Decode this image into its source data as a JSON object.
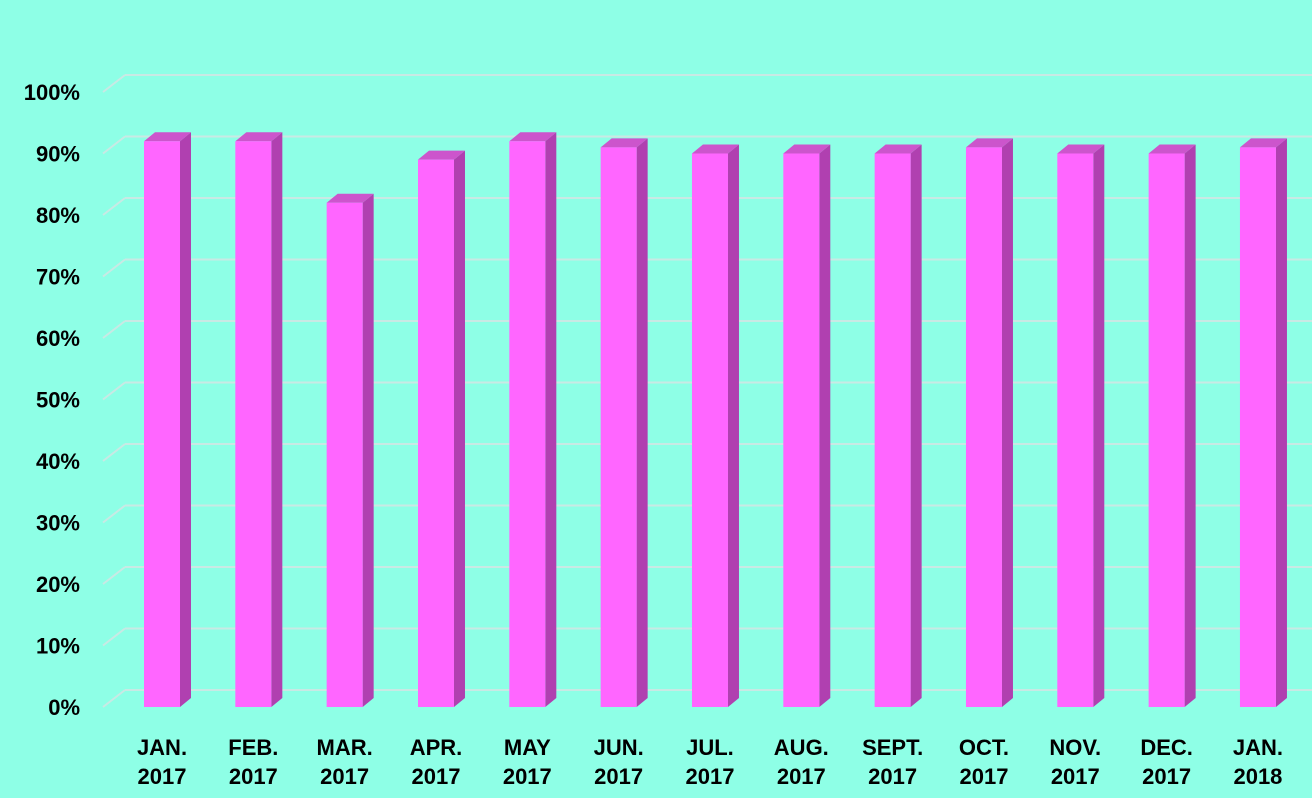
{
  "colors": {
    "background": "#8effe6",
    "gridline": "#c9e9e4",
    "bar_front": "#ff66ff",
    "bar_side": "#b040b0",
    "bar_top": "#cc55cc",
    "text": "#000000"
  },
  "chart_data": {
    "type": "bar",
    "style": "3d-column",
    "title": "",
    "xlabel": "",
    "ylabel": "",
    "ylim": [
      0,
      100
    ],
    "y_tick_labels": [
      "0%",
      "10%",
      "20%",
      "30%",
      "40%",
      "50%",
      "60%",
      "70%",
      "80%",
      "90%",
      "100%"
    ],
    "y_ticks": [
      0,
      10,
      20,
      30,
      40,
      50,
      60,
      70,
      80,
      90,
      100
    ],
    "grid": true,
    "legend": "none",
    "categories": [
      [
        "JAN.",
        "2017"
      ],
      [
        "FEB.",
        "2017"
      ],
      [
        "MAR.",
        "2017"
      ],
      [
        "APR.",
        "2017"
      ],
      [
        "MAY",
        "2017"
      ],
      [
        "JUN.",
        "2017"
      ],
      [
        "JUL.",
        "2017"
      ],
      [
        "AUG.",
        "2017"
      ],
      [
        "SEPT.",
        "2017"
      ],
      [
        "OCT.",
        "2017"
      ],
      [
        "NOV.",
        "2017"
      ],
      [
        "DEC.",
        "2017"
      ],
      [
        "JAN.",
        "2018"
      ]
    ],
    "values": [
      92,
      92,
      82,
      89,
      92,
      91,
      90,
      90,
      90,
      91,
      90,
      90,
      91
    ]
  }
}
